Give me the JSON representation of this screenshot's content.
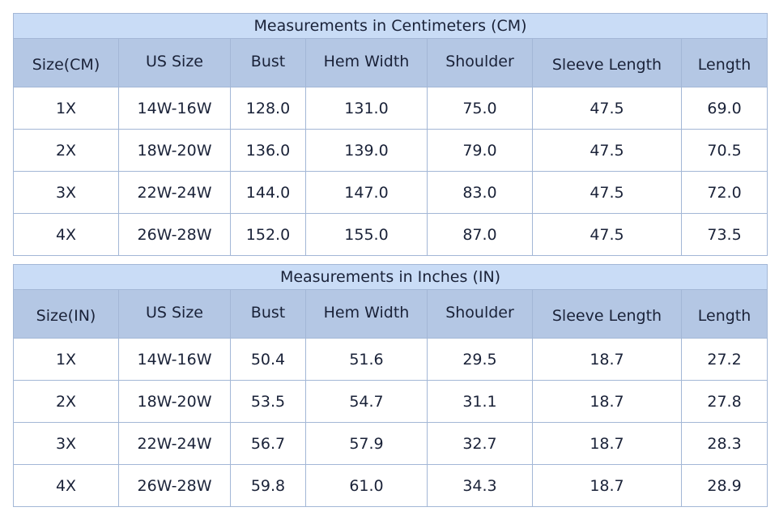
{
  "columns_common": [
    "US Size",
    "Bust",
    "Hem Width",
    "Shoulder",
    "Sleeve Length",
    "Length"
  ],
  "tables": [
    {
      "title": "Measurements in Centimeters (CM)",
      "headers": [
        "Size(CM)",
        "US Size",
        "Bust",
        "Hem Width",
        "Shoulder",
        "Sleeve Length",
        "Length"
      ],
      "rows": [
        [
          "1X",
          "14W-16W",
          "128.0",
          "131.0",
          "75.0",
          "47.5",
          "69.0"
        ],
        [
          "2X",
          "18W-20W",
          "136.0",
          "139.0",
          "79.0",
          "47.5",
          "70.5"
        ],
        [
          "3X",
          "22W-24W",
          "144.0",
          "147.0",
          "83.0",
          "47.5",
          "72.0"
        ],
        [
          "4X",
          "26W-28W",
          "152.0",
          "155.0",
          "87.0",
          "47.5",
          "73.5"
        ]
      ]
    },
    {
      "title": "Measurements in Inches (IN)",
      "headers": [
        "Size(IN)",
        "US Size",
        "Bust",
        "Hem Width",
        "Shoulder",
        "Sleeve Length",
        "Length"
      ],
      "rows": [
        [
          "1X",
          "14W-16W",
          "50.4",
          "51.6",
          "29.5",
          "18.7",
          "27.2"
        ],
        [
          "2X",
          "18W-20W",
          "53.5",
          "54.7",
          "31.1",
          "18.7",
          "27.8"
        ],
        [
          "3X",
          "22W-24W",
          "56.7",
          "57.9",
          "32.7",
          "18.7",
          "28.3"
        ],
        [
          "4X",
          "26W-28W",
          "59.8",
          "61.0",
          "34.3",
          "18.7",
          "28.9"
        ]
      ]
    }
  ],
  "colors": {
    "title_bg": "#c9dcf6",
    "header_bg": "#b4c7e4",
    "border": "#a3b7d6",
    "text": "#1a2238"
  }
}
